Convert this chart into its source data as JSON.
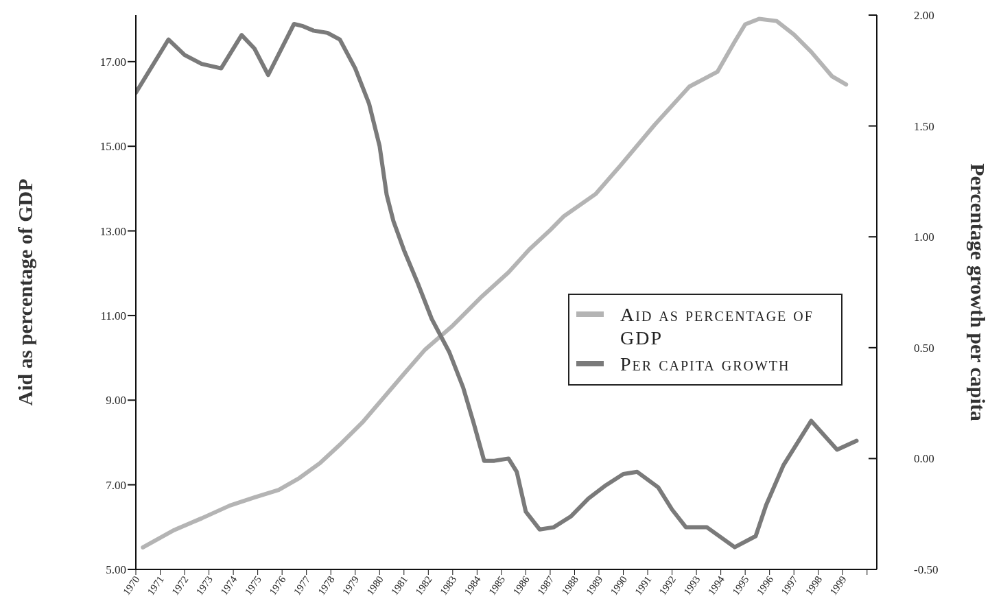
{
  "chart_data": {
    "type": "line",
    "ylabel": "Aid as percentage of GDP",
    "y2label": "Percentage growth per capita",
    "xlim": [
      1970,
      2000.4
    ],
    "xticks": [
      1970,
      1971,
      1972,
      1973,
      1974,
      1975,
      1976,
      1977,
      1978,
      1979,
      1980,
      1981,
      1982,
      1983,
      1984,
      1985,
      1986,
      1987,
      1988,
      1989,
      1990,
      1991,
      1992,
      1993,
      1994,
      1995,
      1996,
      1997,
      1998,
      1999,
      {
        "value": 2000,
        "label": null
      }
    ],
    "ylim": [
      5,
      18.1
    ],
    "yticks": [
      {
        "value": 5,
        "label": "5.00"
      },
      {
        "value": 7,
        "label": "7.00"
      },
      {
        "value": 9,
        "label": "9.00"
      },
      {
        "value": 11,
        "label": "11.00"
      },
      {
        "value": 13,
        "label": "13.00"
      },
      {
        "value": 15,
        "label": "15.00"
      },
      {
        "value": 17,
        "label": "17.00"
      }
    ],
    "y2lim": [
      -0.5,
      2
    ],
    "y2ticks": [
      {
        "value": -0.5,
        "label": "-0.50"
      },
      {
        "value": 0,
        "label": "0.00"
      },
      {
        "value": 0.5,
        "label": "0.50"
      },
      {
        "value": 1,
        "label": "1.00"
      },
      {
        "value": 1.5,
        "label": "1.50"
      },
      {
        "value": 2,
        "label": "2.00"
      }
    ],
    "legend": "right",
    "marker": "none",
    "line_style": "solid",
    "series": [
      {
        "name": "Aid as percentage of GDP",
        "color": "#b4b4b4",
        "x": [
          1970.29,
          1971.57,
          1972.71,
          1973.86,
          1974.86,
          1975.86,
          1976.71,
          1977.57,
          1978.43,
          1979.29,
          1980.14,
          1981.0,
          1981.86,
          1983.0,
          1984.14,
          1985.29,
          1986.14,
          1987.0,
          1987.57,
          1988.86,
          1989.86,
          1991.29,
          1992.71,
          1993.86,
          1994.57,
          1995.0,
          1995.57,
          1996.29,
          1997.0,
          1997.71,
          1998.57,
          1999.14
        ],
        "values": [
          5.52,
          5.93,
          6.21,
          6.51,
          6.7,
          6.88,
          7.16,
          7.52,
          7.98,
          8.47,
          9.04,
          9.62,
          10.19,
          10.76,
          11.42,
          12.02,
          12.56,
          13.02,
          13.35,
          13.87,
          14.53,
          15.51,
          16.41,
          16.76,
          17.47,
          17.88,
          18.01,
          17.96,
          17.64,
          17.23,
          16.65,
          16.46
        ]
      },
      {
        "name": "Per capita growth",
        "color": "#7a7a7a",
        "axis": "y2",
        "x": [
          1970,
          1971.34,
          1972.0,
          1972.7,
          1973.5,
          1974.34,
          1974.86,
          1975.43,
          1976.49,
          1976.86,
          1977.29,
          1977.86,
          1978.37,
          1979.0,
          1979.57,
          1980.0,
          1980.29,
          1980.57,
          1981.0,
          1981.57,
          1982.14,
          1982.86,
          1983.43,
          1983.86,
          1984.29,
          1984.71,
          1985.29,
          1985.63,
          1986.0,
          1986.57,
          1987.14,
          1987.86,
          1988.57,
          1989.29,
          1990.0,
          1990.57,
          1991.43,
          1992.0,
          1992.57,
          1993.43,
          1994.57,
          1995.43,
          1995.86,
          1996.57,
          1997.71,
          1998.77,
          1999.57
        ],
        "values": [
          1.65,
          1.89,
          1.82,
          1.78,
          1.76,
          1.91,
          1.85,
          1.73,
          1.96,
          1.95,
          1.93,
          1.92,
          1.89,
          1.76,
          1.6,
          1.41,
          1.19,
          1.07,
          0.94,
          0.79,
          0.63,
          0.48,
          0.32,
          0.16,
          -0.01,
          -0.01,
          0.0,
          -0.06,
          -0.24,
          -0.32,
          -0.31,
          -0.26,
          -0.18,
          -0.12,
          -0.07,
          -0.06,
          -0.13,
          -0.23,
          -0.31,
          -0.31,
          -0.4,
          -0.35,
          -0.21,
          -0.03,
          0.17,
          0.04,
          0.08
        ]
      }
    ]
  }
}
